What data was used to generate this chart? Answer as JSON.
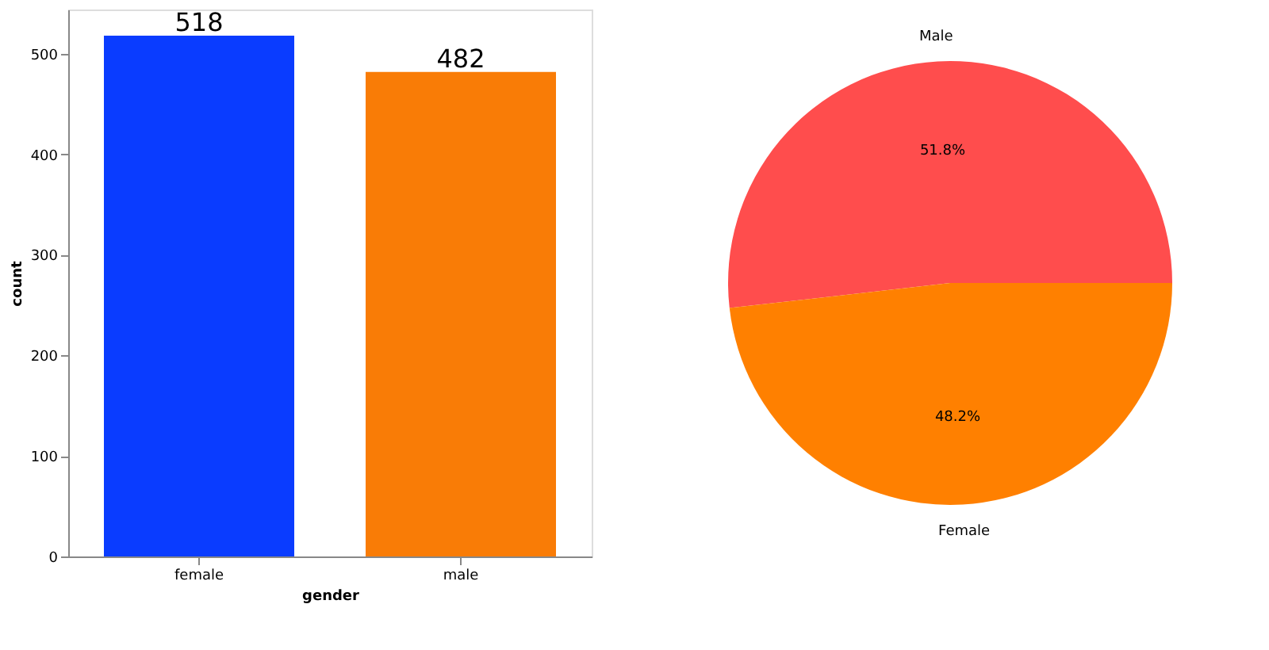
{
  "chart_data": [
    {
      "type": "bar",
      "xlabel": "gender",
      "ylabel": "count",
      "categories": [
        "female",
        "male"
      ],
      "values": [
        518,
        482
      ],
      "colors": [
        "#0a3cff",
        "#f97c06"
      ],
      "ylim": [
        0,
        544
      ],
      "yticks": [
        0,
        100,
        200,
        300,
        400,
        500
      ],
      "data_labels": true,
      "grid": false
    },
    {
      "type": "pie",
      "categories": [
        "Male",
        "Female"
      ],
      "values": [
        51.8,
        48.2
      ],
      "colors": [
        "#ff4d4d",
        "#ff8000"
      ],
      "value_labels": [
        "51.8%",
        "48.2%"
      ]
    }
  ]
}
